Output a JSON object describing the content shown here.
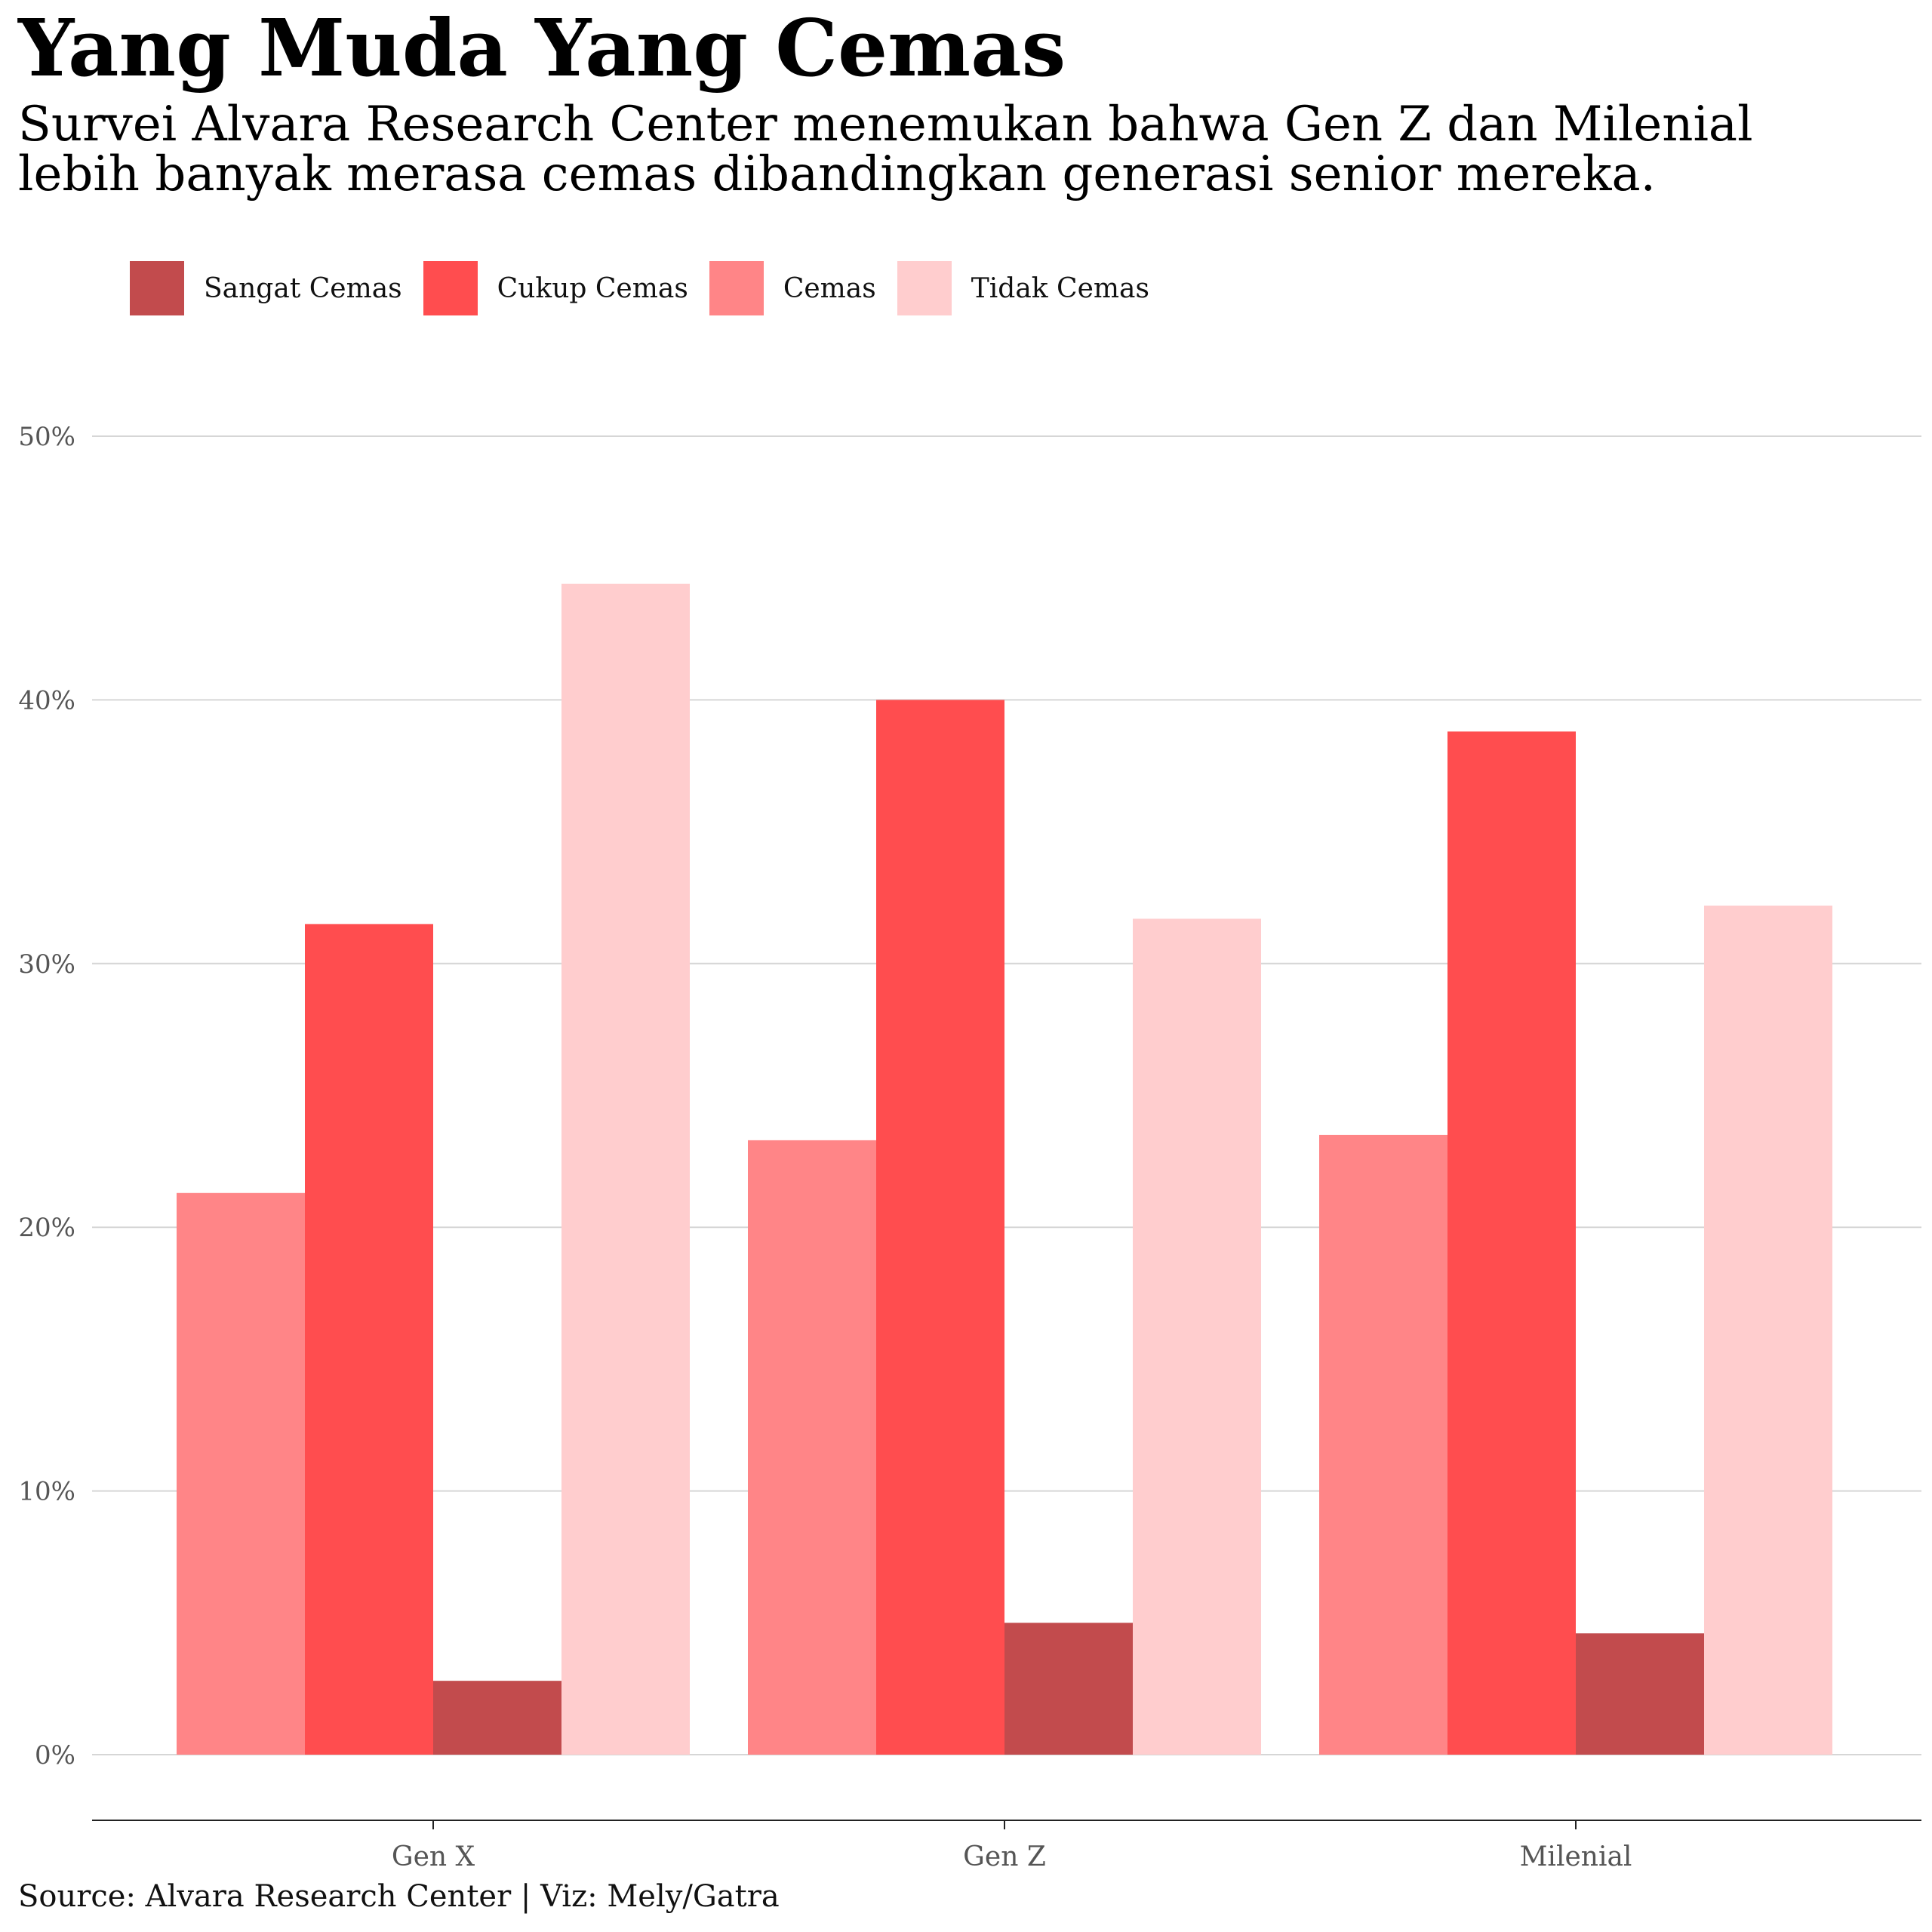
{
  "chart_data": {
    "type": "bar",
    "title": "Yang Muda Yang Cemas",
    "subtitle": "Survei Alvara Research Center menemukan bahwa Gen Z dan Milenial lebih banyak merasa cemas dibandingkan generasi senior mereka.",
    "source": "Source: Alvara Research Center | Viz: Mely/Gatra",
    "categories": [
      "Gen X",
      "Gen Z",
      "Milenial"
    ],
    "series": [
      {
        "name": "Cemas",
        "color": "#ff8587",
        "values": [
          21.3,
          23.3,
          23.5
        ]
      },
      {
        "name": "Cukup Cemas",
        "color": "#ff4d4f",
        "values": [
          31.5,
          40.0,
          38.8
        ]
      },
      {
        "name": "Sangat Cemas",
        "color": "#c24b4d",
        "values": [
          2.8,
          5.0,
          4.6
        ]
      },
      {
        "name": "Tidak Cemas",
        "color": "#ffcdce",
        "values": [
          44.4,
          31.7,
          32.2
        ]
      }
    ],
    "legend_order": [
      "Sangat Cemas",
      "Cukup Cemas",
      "Cemas",
      "Tidak Cemas"
    ],
    "legend_position": "top-left",
    "yticks": [
      "0%",
      "10%",
      "20%",
      "30%",
      "40%",
      "50%"
    ],
    "ylim": [
      0,
      50
    ],
    "xlabel": "",
    "ylabel": "",
    "grid": true
  }
}
